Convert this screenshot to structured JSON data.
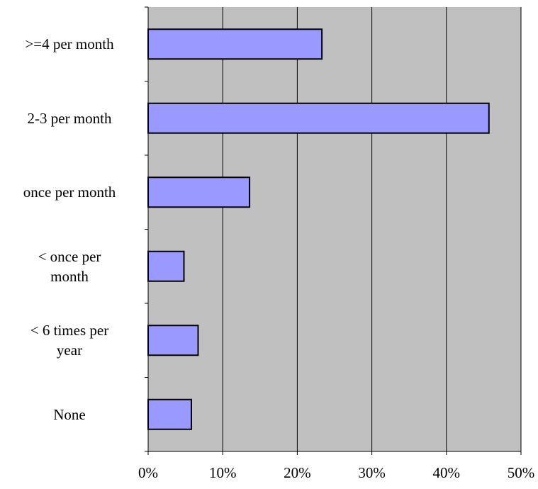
{
  "chart_data": {
    "type": "bar",
    "orientation": "horizontal",
    "categories": [
      ">=4 per month",
      "2-3 per month",
      "once per month",
      "< once per\nmonth",
      "< 6 times per\nyear",
      "None"
    ],
    "values": [
      23.3,
      45.7,
      13.6,
      4.8,
      6.7,
      5.8
    ],
    "color": "#9999ff",
    "xlim": [
      0,
      50
    ],
    "xticks": [
      {
        "value": 0,
        "label": "0%"
      },
      {
        "value": 10,
        "label": "10%"
      },
      {
        "value": 20,
        "label": "20%"
      },
      {
        "value": 30,
        "label": "30%"
      },
      {
        "value": 40,
        "label": "40%"
      },
      {
        "value": 50,
        "label": "50%"
      }
    ],
    "grid": true
  }
}
